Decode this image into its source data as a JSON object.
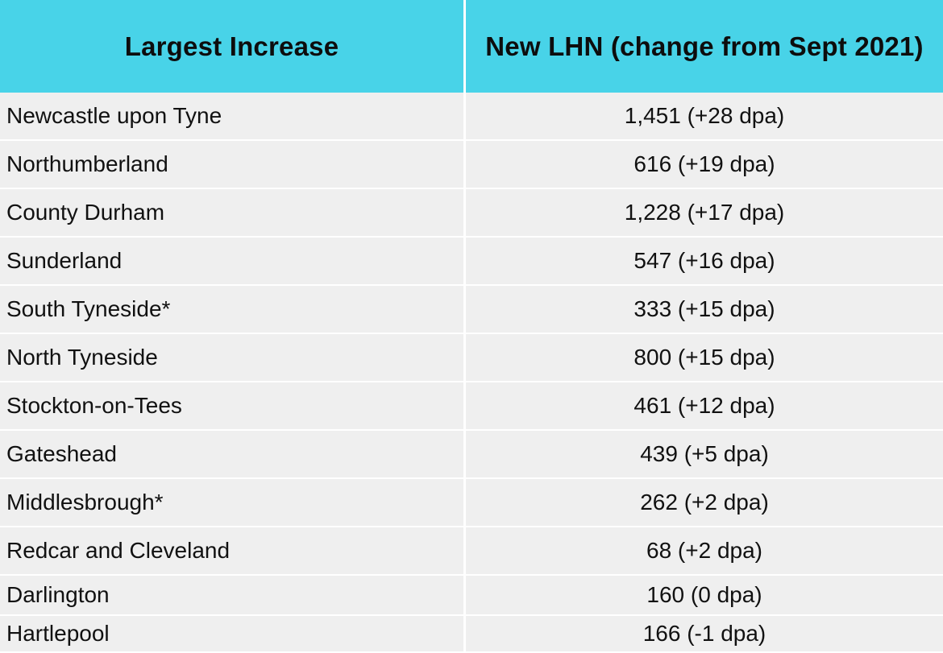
{
  "table": {
    "headers": [
      "Largest Increase",
      "New LHN (change from Sept 2021)"
    ],
    "rows": [
      {
        "area": "Newcastle upon Tyne",
        "value": "1,451 (+28 dpa)"
      },
      {
        "area": "Northumberland",
        "value": "616 (+19 dpa)"
      },
      {
        "area": "County Durham",
        "value": "1,228 (+17 dpa)"
      },
      {
        "area": "Sunderland",
        "value": "547 (+16 dpa)"
      },
      {
        "area": "South Tyneside*",
        "value": "333 (+15 dpa)"
      },
      {
        "area": "North Tyneside",
        "value": "800 (+15 dpa)"
      },
      {
        "area": "Stockton-on-Tees",
        "value": "461 (+12 dpa)"
      },
      {
        "area": "Gateshead",
        "value": "439 (+5 dpa)"
      },
      {
        "area": "Middlesbrough*",
        "value": "262 (+2 dpa)"
      },
      {
        "area": "Redcar and Cleveland",
        "value": "68 (+2 dpa)"
      },
      {
        "area": "Darlington",
        "value": "160 (0 dpa)"
      },
      {
        "area": "Hartlepool",
        "value": "166 (-1 dpa)"
      }
    ]
  },
  "colors": {
    "header_bg": "#48d3e8",
    "row_bg": "#efefef",
    "divider": "#ffffff"
  }
}
